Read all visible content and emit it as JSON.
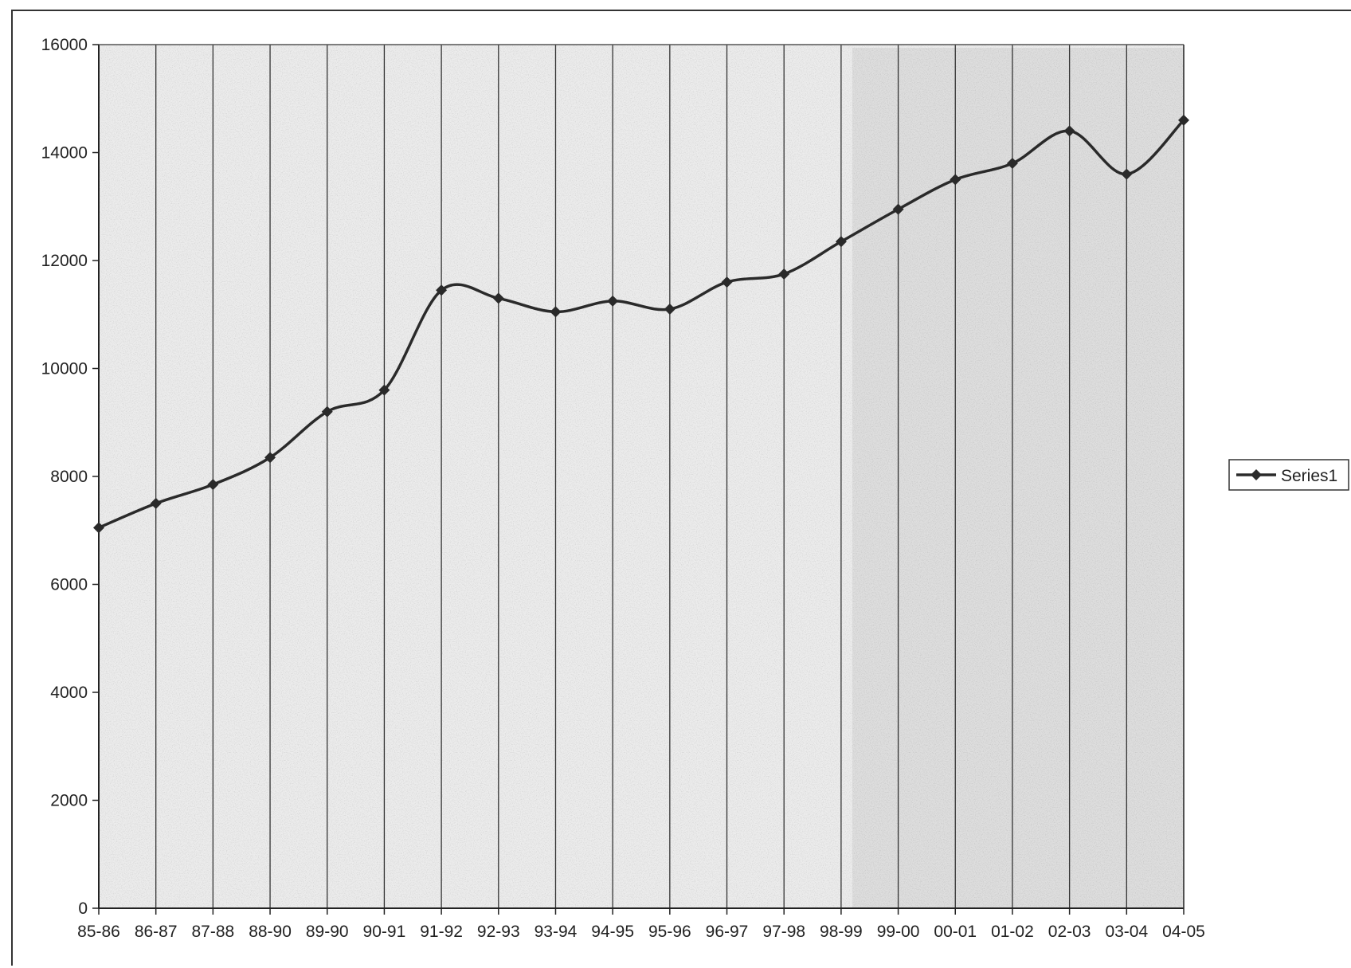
{
  "chart_data": {
    "type": "line",
    "categories": [
      "85-86",
      "86-87",
      "87-88",
      "88-90",
      "89-90",
      "90-91",
      "91-92",
      "92-93",
      "93-94",
      "94-95",
      "95-96",
      "96-97",
      "97-98",
      "98-99",
      "99-00",
      "00-01",
      "01-02",
      "02-03",
      "03-04",
      "04-05"
    ],
    "series": [
      {
        "name": "Series1",
        "values": [
          7050,
          7500,
          7850,
          8350,
          9200,
          9600,
          11450,
          11300,
          11050,
          11250,
          11100,
          11600,
          11750,
          12350,
          12950,
          13500,
          13800,
          14400,
          13600,
          14600
        ]
      }
    ],
    "yticks": [
      "0",
      "2000",
      "4000",
      "6000",
      "8000",
      "10000",
      "12000",
      "14000",
      "16000"
    ],
    "ylim": [
      0,
      16000
    ],
    "grid": "vertical",
    "legend": "right",
    "colors": {
      "line": "#2a2a2a",
      "grid": "#333333",
      "plot_bg": "#e9e9e9"
    }
  }
}
